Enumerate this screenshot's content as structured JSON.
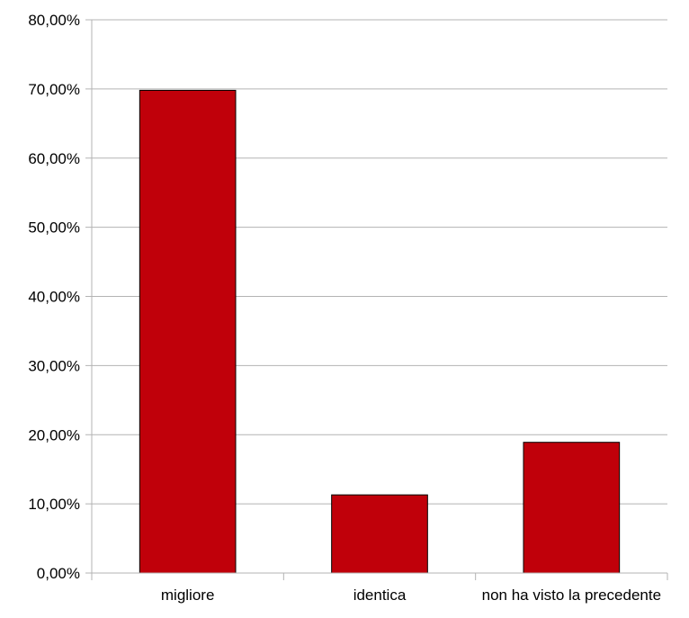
{
  "chart_data": {
    "type": "bar",
    "categories": [
      "migliore",
      "identica",
      "non ha visto la precedente"
    ],
    "values": [
      69.8,
      11.3,
      18.9
    ],
    "y_ticks": [
      "0,00%",
      "10,00%",
      "20,00%",
      "30,00%",
      "40,00%",
      "50,00%",
      "60,00%",
      "70,00%",
      "80,00%"
    ],
    "ylim": [
      0,
      80
    ],
    "grid": true,
    "legend": "none",
    "colors": {
      "bar_fill": "#c0000a",
      "bar_stroke": "#000000",
      "grid": "#b3b3b3",
      "axis": "#b3b3b3"
    }
  }
}
